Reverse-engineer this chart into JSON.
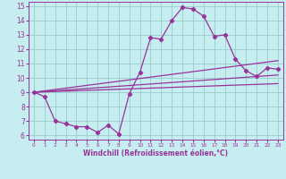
{
  "xlabel": "Windchill (Refroidissement éolien,°C)",
  "background_color": "#c6eef0",
  "grid_color": "#99cccc",
  "line_color": "#993399",
  "ylim": [
    5.7,
    15.3
  ],
  "xlim": [
    -0.5,
    23.5
  ],
  "yticks": [
    6,
    7,
    8,
    9,
    10,
    11,
    12,
    13,
    14,
    15
  ],
  "xticks": [
    0,
    1,
    2,
    3,
    4,
    5,
    6,
    7,
    8,
    9,
    10,
    11,
    12,
    13,
    14,
    15,
    16,
    17,
    18,
    19,
    20,
    21,
    22,
    23
  ],
  "line1_x": [
    0,
    1,
    2,
    3,
    4,
    5,
    6,
    7,
    8,
    9,
    10,
    11,
    12,
    13,
    14,
    15,
    16,
    17,
    18,
    19,
    20,
    21,
    22,
    23
  ],
  "line1_y": [
    9.0,
    8.7,
    7.0,
    6.8,
    6.6,
    6.6,
    6.2,
    6.7,
    6.1,
    8.9,
    10.4,
    12.8,
    12.7,
    14.0,
    14.9,
    14.8,
    14.3,
    12.9,
    13.0,
    11.3,
    10.5,
    10.1,
    10.7,
    10.6
  ],
  "line2_x": [
    0,
    23
  ],
  "line2_y": [
    9.0,
    11.2
  ],
  "line3_x": [
    0,
    23
  ],
  "line3_y": [
    9.0,
    10.2
  ],
  "line4_x": [
    0,
    23
  ],
  "line4_y": [
    9.0,
    9.6
  ]
}
